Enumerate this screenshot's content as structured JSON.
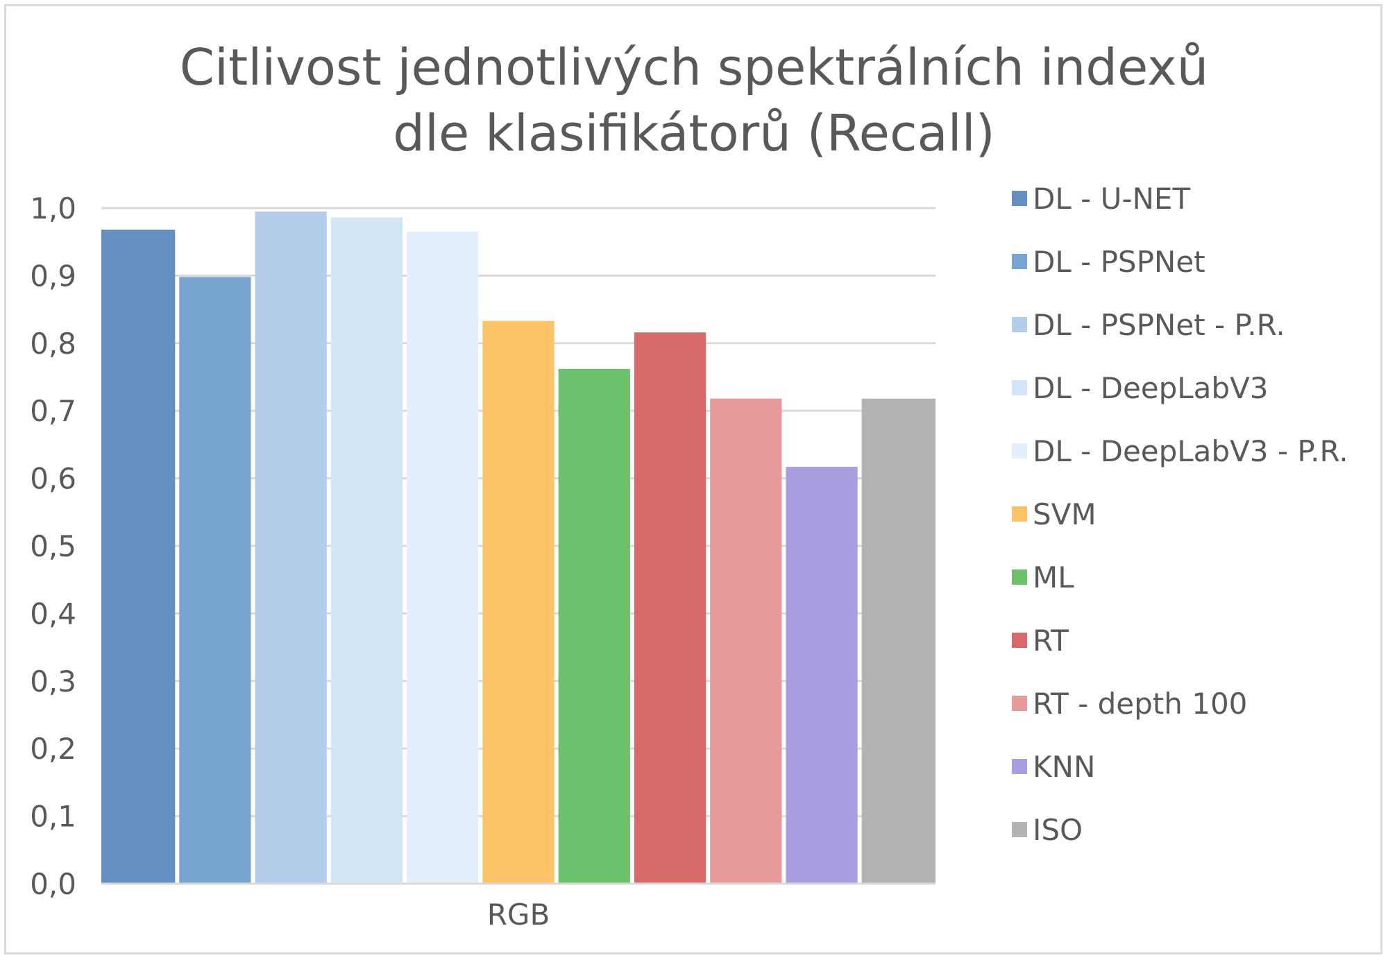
{
  "chart_data": {
    "type": "bar",
    "title_lines": [
      "Citlivost jednotlivých spektrálních indexů",
      "dle klasifikátorů (Recall)"
    ],
    "categories": [
      "RGB"
    ],
    "ylim": [
      0,
      1
    ],
    "yticks": [
      "0,0",
      "0,1",
      "0,2",
      "0,3",
      "0,4",
      "0,5",
      "0,6",
      "0,7",
      "0,8",
      "0,9",
      "1,0"
    ],
    "grid": true,
    "legend_position": "right",
    "series": [
      {
        "name": "DL - U-NET",
        "values": [
          0.968
        ],
        "color": "#658fc0"
      },
      {
        "name": "DL - PSPNet",
        "values": [
          0.898
        ],
        "color": "#78a5cf"
      },
      {
        "name": "DL - PSPNet - P.R.",
        "values": [
          0.995
        ],
        "color": "#b4cdea"
      },
      {
        "name": "DL - DeepLabV3",
        "values": [
          0.986
        ],
        "color": "#d3e6f8"
      },
      {
        "name": "DL - DeepLabV3 - P.R.",
        "values": [
          0.965
        ],
        "color": "#e3f0fb"
      },
      {
        "name": "SVM",
        "values": [
          0.833
        ],
        "color": "#fdc366"
      },
      {
        "name": "ML",
        "values": [
          0.762
        ],
        "color": "#6dc06c"
      },
      {
        "name": "RT",
        "values": [
          0.816
        ],
        "color": "#d7696a"
      },
      {
        "name": "RT - depth 100",
        "values": [
          0.718
        ],
        "color": "#e89a9a"
      },
      {
        "name": "KNN",
        "values": [
          0.617
        ],
        "color": "#a99fe0"
      },
      {
        "name": "ISO",
        "values": [
          0.718
        ],
        "color": "#b3b3b3"
      }
    ]
  }
}
